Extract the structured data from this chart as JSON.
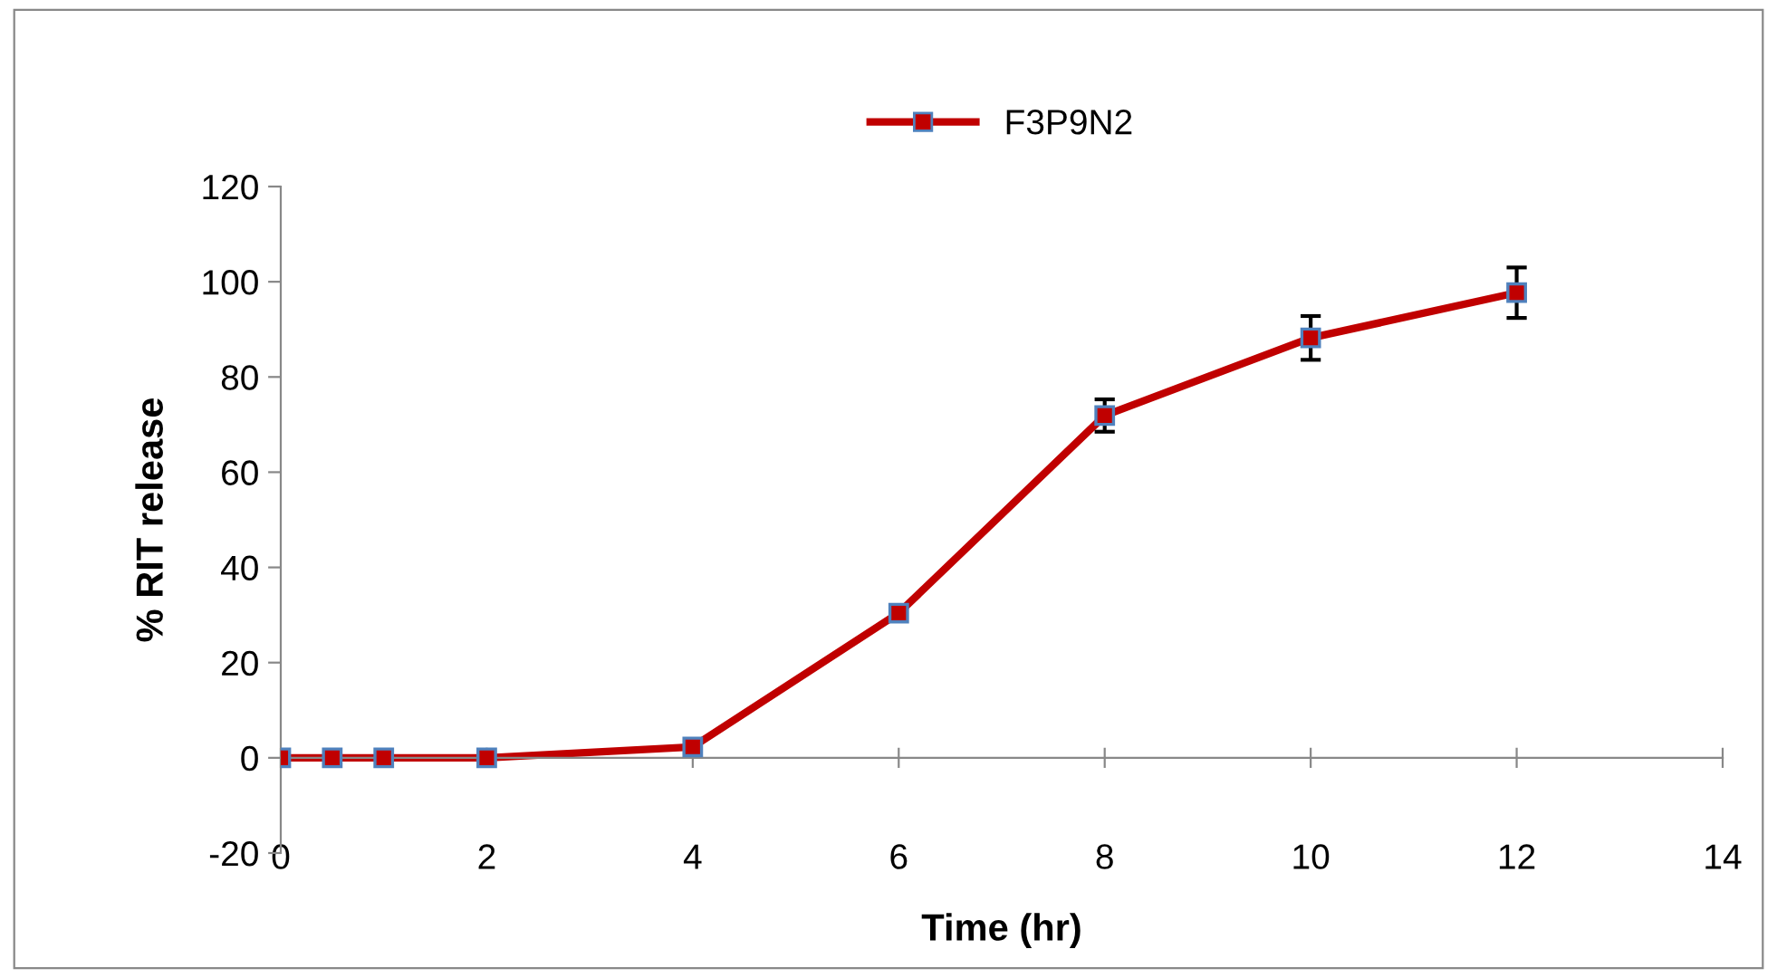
{
  "chart_data": {
    "type": "line",
    "xlabel": "Time (hr)",
    "ylabel": "% RIT release",
    "x": [
      0,
      0.5,
      1,
      2,
      4,
      6,
      8,
      10,
      12
    ],
    "series": [
      {
        "name": "F3P9N2",
        "color": "#c00000",
        "values": [
          0,
          0,
          0,
          0,
          2.3,
          30.4,
          71.9,
          88.2,
          97.7
        ],
        "errors": [
          null,
          null,
          null,
          null,
          null,
          null,
          3.4,
          4.6,
          5.3
        ]
      }
    ],
    "xlim": [
      0,
      14
    ],
    "xticks": [
      0,
      2,
      4,
      6,
      8,
      10,
      12,
      14
    ],
    "ylim": [
      -20,
      120
    ],
    "yticks": [
      -20,
      0,
      20,
      40,
      60,
      80,
      100,
      120
    ],
    "grid": false,
    "legend": "top",
    "marker": "square",
    "line_style": "solid"
  }
}
